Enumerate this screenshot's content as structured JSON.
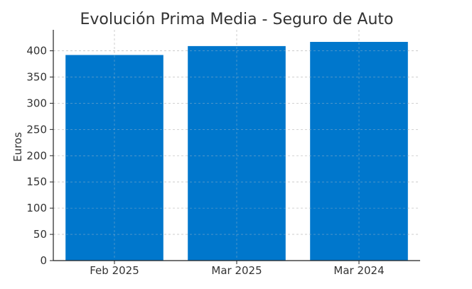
{
  "chart_data": {
    "type": "bar",
    "title": "Evolución Prima Media - Seguro de Auto",
    "xlabel": "",
    "ylabel": "Euros",
    "categories": [
      "Feb 2025",
      "Mar 2025",
      "Mar 2024"
    ],
    "values": [
      392,
      409,
      417
    ],
    "ylim": [
      0,
      440
    ],
    "yticks": [
      0,
      50,
      100,
      150,
      200,
      250,
      300,
      350,
      400
    ],
    "grid": true,
    "legend": "none",
    "bar_color": "#0077cc",
    "grid_color": "#c8c8c8",
    "axis_color": "#222222"
  }
}
